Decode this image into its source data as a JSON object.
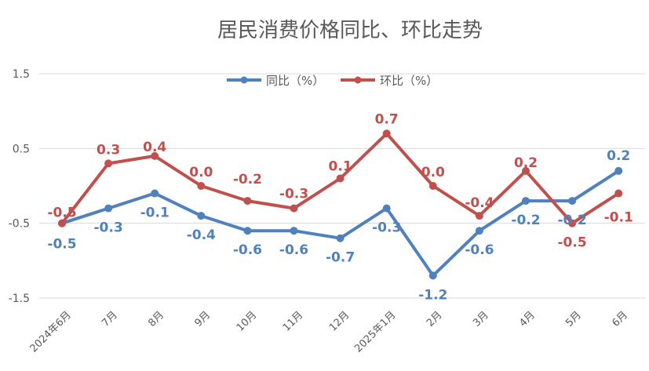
{
  "chart_data": {
    "type": "line",
    "title": "居民消费价格同比、环比走势",
    "xlabel": "",
    "ylabel": "",
    "categories": [
      "2024年6月",
      "7月",
      "8月",
      "9月",
      "10月",
      "11月",
      "12月",
      "2025年1月",
      "2月",
      "3月",
      "4月",
      "5月",
      "6月"
    ],
    "ylim": [
      -1.5,
      1.5
    ],
    "yticks": [
      "1.5",
      "0.5",
      "-0.5",
      "-1.5"
    ],
    "grid": true,
    "legend_position": "top",
    "series": [
      {
        "name": "同比（%）",
        "color": "#4f81bd",
        "values": [
          -0.5,
          -0.3,
          -0.1,
          -0.4,
          -0.6,
          -0.6,
          -0.7,
          -0.3,
          -1.2,
          -0.6,
          -0.2,
          -0.2,
          0.2
        ],
        "labels": [
          "-0.5",
          "-0.3",
          "-0.1",
          "-0.4",
          "-0.6",
          "-0.6",
          "-0.7",
          "-0.3",
          "-1.2",
          "-0.6",
          "-0.2",
          "-0.2",
          "0.2"
        ]
      },
      {
        "name": "环比（%）",
        "color": "#c0504d",
        "values": [
          -0.5,
          0.3,
          0.4,
          0.0,
          -0.2,
          -0.3,
          0.1,
          0.7,
          0.0,
          -0.4,
          0.2,
          -0.5,
          -0.1
        ],
        "labels": [
          "-0.5",
          "0.3",
          "0.4",
          "0.0",
          "-0.2",
          "-0.3",
          "0.1",
          "0.7",
          "0.0",
          "-0.4",
          "0.2",
          "-0.5",
          "-0.1"
        ]
      }
    ]
  }
}
